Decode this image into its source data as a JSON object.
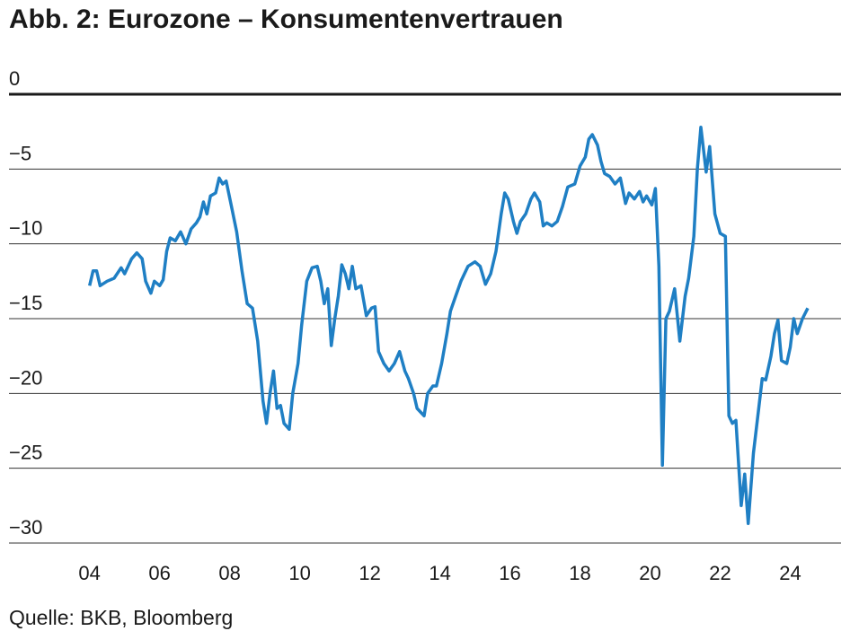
{
  "chart_data": {
    "type": "line",
    "title": "Abb. 2: Eurozone – Konsumentenvertrauen",
    "source": "Quelle: BKB, Bloomberg",
    "color": "#1f7fc4",
    "x": [
      2004.0,
      2004.1,
      2004.2,
      2004.3,
      2004.5,
      2004.7,
      2004.9,
      2005.0,
      2005.2,
      2005.35,
      2005.5,
      2005.6,
      2005.75,
      2005.85,
      2006.0,
      2006.1,
      2006.2,
      2006.3,
      2006.45,
      2006.6,
      2006.75,
      2006.9,
      2007.05,
      2007.15,
      2007.25,
      2007.35,
      2007.45,
      2007.6,
      2007.7,
      2007.8,
      2007.9,
      2008.05,
      2008.2,
      2008.35,
      2008.5,
      2008.65,
      2008.8,
      2008.95,
      2009.05,
      2009.15,
      2009.25,
      2009.35,
      2009.45,
      2009.55,
      2009.7,
      2009.8,
      2009.95,
      2010.05,
      2010.2,
      2010.35,
      2010.5,
      2010.6,
      2010.7,
      2010.8,
      2010.9,
      2011.0,
      2011.1,
      2011.2,
      2011.3,
      2011.4,
      2011.5,
      2011.6,
      2011.75,
      2011.9,
      2012.05,
      2012.15,
      2012.25,
      2012.4,
      2012.55,
      2012.7,
      2012.85,
      2013.0,
      2013.1,
      2013.25,
      2013.35,
      2013.55,
      2013.65,
      2013.8,
      2013.9,
      2014.05,
      2014.2,
      2014.3,
      2014.45,
      2014.6,
      2014.8,
      2015.0,
      2015.15,
      2015.3,
      2015.45,
      2015.6,
      2015.75,
      2015.85,
      2015.95,
      2016.1,
      2016.2,
      2016.3,
      2016.45,
      2016.6,
      2016.7,
      2016.85,
      2016.95,
      2017.05,
      2017.2,
      2017.35,
      2017.5,
      2017.65,
      2017.85,
      2018.0,
      2018.15,
      2018.25,
      2018.35,
      2018.5,
      2018.6,
      2018.7,
      2018.85,
      2019.0,
      2019.15,
      2019.3,
      2019.4,
      2019.55,
      2019.7,
      2019.8,
      2019.9,
      2020.05,
      2020.15,
      2020.25,
      2020.35,
      2020.45,
      2020.55,
      2020.7,
      2020.85,
      2021.0,
      2021.1,
      2021.25,
      2021.35,
      2021.45,
      2021.6,
      2021.7,
      2021.85,
      2022.0,
      2022.15,
      2022.25,
      2022.35,
      2022.45,
      2022.6,
      2022.7,
      2022.8,
      2022.95,
      2023.1,
      2023.2,
      2023.3,
      2023.45,
      2023.55,
      2023.65,
      2023.75,
      2023.9,
      2024.0,
      2024.1,
      2024.2,
      2024.35,
      2024.5
    ],
    "values": [
      -12.8,
      -11.8,
      -11.8,
      -12.8,
      -12.5,
      -12.3,
      -11.6,
      -12.0,
      -11.0,
      -10.6,
      -11.0,
      -12.5,
      -13.3,
      -12.5,
      -12.8,
      -12.4,
      -10.5,
      -9.6,
      -9.8,
      -9.2,
      -10.0,
      -9.0,
      -8.6,
      -8.2,
      -7.2,
      -8.0,
      -6.8,
      -6.6,
      -5.6,
      -6.0,
      -5.8,
      -7.5,
      -9.2,
      -11.8,
      -14.0,
      -14.3,
      -16.5,
      -20.5,
      -22.0,
      -20.0,
      -18.5,
      -21.0,
      -20.8,
      -22.0,
      -22.4,
      -20.0,
      -18.0,
      -15.5,
      -12.5,
      -11.6,
      -11.5,
      -12.5,
      -14.0,
      -13.0,
      -16.8,
      -15.0,
      -13.5,
      -11.4,
      -12.0,
      -13.0,
      -11.5,
      -13.0,
      -12.8,
      -14.8,
      -14.3,
      -14.2,
      -17.2,
      -18.0,
      -18.5,
      -18.0,
      -17.2,
      -18.5,
      -19.0,
      -20.0,
      -21.0,
      -21.5,
      -20.0,
      -19.5,
      -19.5,
      -18.0,
      -16.0,
      -14.5,
      -13.5,
      -12.5,
      -11.5,
      -11.2,
      -11.5,
      -12.7,
      -12.0,
      -10.5,
      -8.0,
      -6.6,
      -7.0,
      -8.5,
      -9.3,
      -8.5,
      -8.0,
      -7.0,
      -6.6,
      -7.2,
      -8.8,
      -8.6,
      -8.8,
      -8.5,
      -7.5,
      -6.2,
      -6.0,
      -4.8,
      -4.2,
      -3.0,
      -2.7,
      -3.4,
      -4.5,
      -5.3,
      -5.5,
      -6.0,
      -5.6,
      -7.3,
      -6.6,
      -7.0,
      -6.5,
      -7.2,
      -6.8,
      -7.4,
      -6.3,
      -11.5,
      -24.8,
      -15.0,
      -14.5,
      -13.0,
      -16.5,
      -13.5,
      -12.3,
      -9.5,
      -5.0,
      -2.2,
      -5.2,
      -3.5,
      -8.0,
      -9.3,
      -9.5,
      -21.5,
      -22.0,
      -21.8,
      -27.5,
      -25.4,
      -28.7,
      -24.0,
      -21.0,
      -19.0,
      -19.1,
      -17.5,
      -16.0,
      -15.1,
      -17.8,
      -18.0,
      -16.9,
      -15.0,
      -16.0,
      -15.0,
      -14.3
    ],
    "xlim": [
      2001.7,
      2025.45
    ],
    "xticks": [
      {
        "value": 2004,
        "label": "04"
      },
      {
        "value": 2006,
        "label": "06"
      },
      {
        "value": 2008,
        "label": "08"
      },
      {
        "value": 2010,
        "label": "10"
      },
      {
        "value": 2012,
        "label": "12"
      },
      {
        "value": 2014,
        "label": "14"
      },
      {
        "value": 2016,
        "label": "16"
      },
      {
        "value": 2018,
        "label": "18"
      },
      {
        "value": 2020,
        "label": "20"
      },
      {
        "value": 2022,
        "label": "22"
      },
      {
        "value": 2024,
        "label": "24"
      }
    ],
    "ylim": [
      -30,
      0
    ],
    "yticks": [
      0,
      {
        "value": -5,
        "label": "−5"
      },
      {
        "value": -10,
        "label": "−10"
      },
      {
        "value": -15,
        "label": "−15"
      },
      {
        "value": -20,
        "label": "−20"
      },
      {
        "value": -25,
        "label": "−25"
      },
      {
        "value": -30,
        "label": "−30"
      }
    ],
    "grid": true
  }
}
